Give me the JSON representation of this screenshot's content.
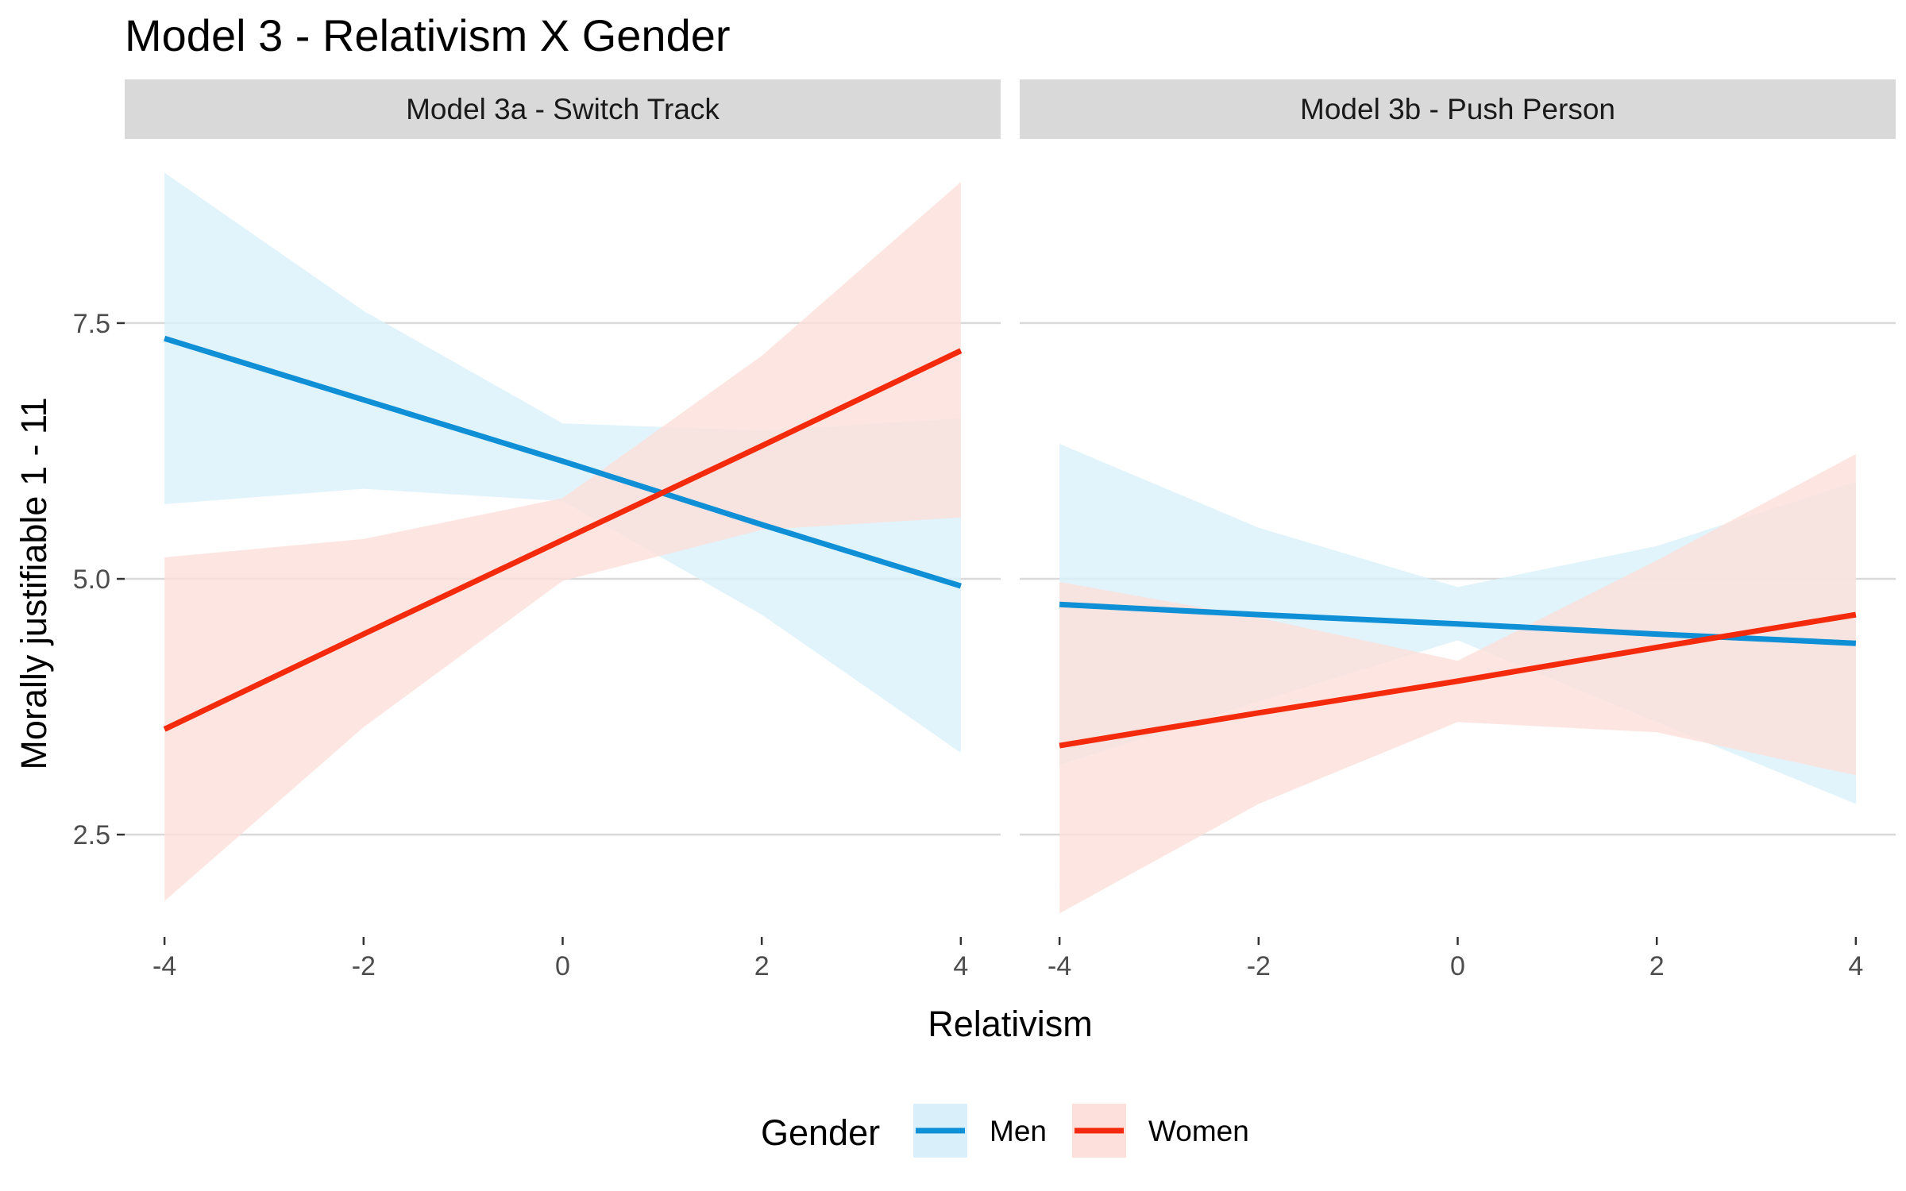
{
  "chart_data": {
    "type": "line",
    "title": "Model 3 - Relativism X Gender",
    "xlabel": "Relativism",
    "ylabel": "Morally justifiable 1 - 11",
    "xlim": [
      -4.4,
      4.4
    ],
    "ylim": [
      1.5,
      9.3
    ],
    "x_ticks": [
      -4,
      -2,
      0,
      2,
      4
    ],
    "x_tick_labels": [
      "-4",
      "-2",
      "0",
      "2",
      "4"
    ],
    "y_ticks": [
      2.5,
      5.0,
      7.5
    ],
    "y_tick_labels": [
      "2.5",
      "5.0",
      "7.5"
    ],
    "grid": true,
    "legend": {
      "title": "Gender",
      "position": "bottom",
      "entries": [
        {
          "label": "Men",
          "color": "#0f8fd6",
          "fill": "#d9f0fa"
        },
        {
          "label": "Women",
          "color": "#f32a0b",
          "fill": "#fde0db"
        }
      ]
    },
    "panels": [
      {
        "strip_label": "Model 3a - Switch Track",
        "series": [
          {
            "name": "Men",
            "x": [
              -4,
              -2,
              0,
              2,
              4
            ],
            "y": [
              7.35,
              6.75,
              6.15,
              5.53,
              4.93
            ],
            "lower": [
              5.73,
              5.88,
              5.76,
              4.65,
              3.3
            ],
            "upper": [
              8.97,
              7.62,
              6.52,
              6.45,
              6.57
            ]
          },
          {
            "name": "Women",
            "x": [
              -4,
              -2,
              0,
              2,
              4
            ],
            "y": [
              3.53,
              4.46,
              5.38,
              6.3,
              7.23
            ],
            "lower": [
              1.85,
              3.55,
              4.98,
              5.48,
              5.6
            ],
            "upper": [
              5.21,
              5.39,
              5.79,
              7.18,
              8.88
            ]
          }
        ]
      },
      {
        "strip_label": "Model 3b - Push Person",
        "series": [
          {
            "name": "Men",
            "x": [
              -4,
              -2,
              0,
              2,
              4
            ],
            "y": [
              4.75,
              4.65,
              4.56,
              4.46,
              4.37
            ],
            "lower": [
              3.18,
              3.8,
              4.4,
              3.6,
              2.8
            ],
            "upper": [
              6.32,
              5.5,
              4.92,
              5.32,
              5.95
            ]
          },
          {
            "name": "Women",
            "x": [
              -4,
              -2,
              0,
              2,
              4
            ],
            "y": [
              3.37,
              3.69,
              4.0,
              4.33,
              4.65
            ],
            "lower": [
              1.73,
              2.8,
              3.6,
              3.5,
              3.08
            ],
            "upper": [
              4.97,
              4.62,
              4.2,
              5.18,
              6.22
            ]
          }
        ]
      }
    ]
  }
}
